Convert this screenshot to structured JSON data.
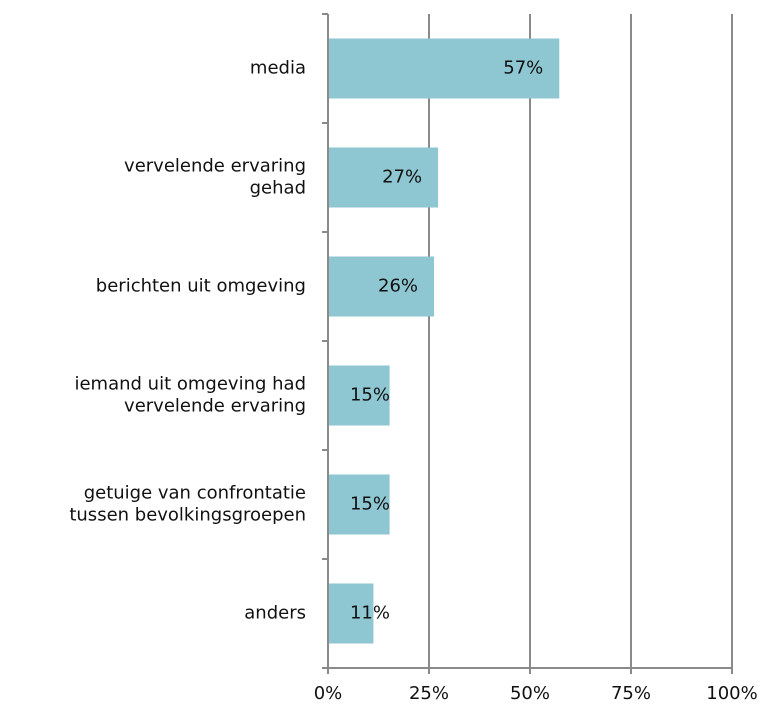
{
  "chart_data": {
    "type": "bar",
    "orientation": "horizontal",
    "categories": [
      "media",
      "vervelende ervaring\ngehad",
      "berichten uit omgeving",
      "iemand uit omgeving had\nvervelende ervaring",
      "getuige van confrontatie\ntussen bevolkingsgroepen",
      "anders"
    ],
    "values": [
      57,
      27,
      26,
      15,
      15,
      11
    ],
    "value_labels": [
      "57%",
      "27%",
      "26%",
      "15%",
      "15%",
      "11%"
    ],
    "color": "#8ec6d2",
    "xlim": [
      0,
      100
    ],
    "xticks": [
      {
        "value": 0,
        "label": "0%"
      },
      {
        "value": 25,
        "label": "25%"
      },
      {
        "value": 50,
        "label": "50%"
      },
      {
        "value": 75,
        "label": "75%"
      },
      {
        "value": 100,
        "label": "100%"
      }
    ],
    "grid": true
  }
}
